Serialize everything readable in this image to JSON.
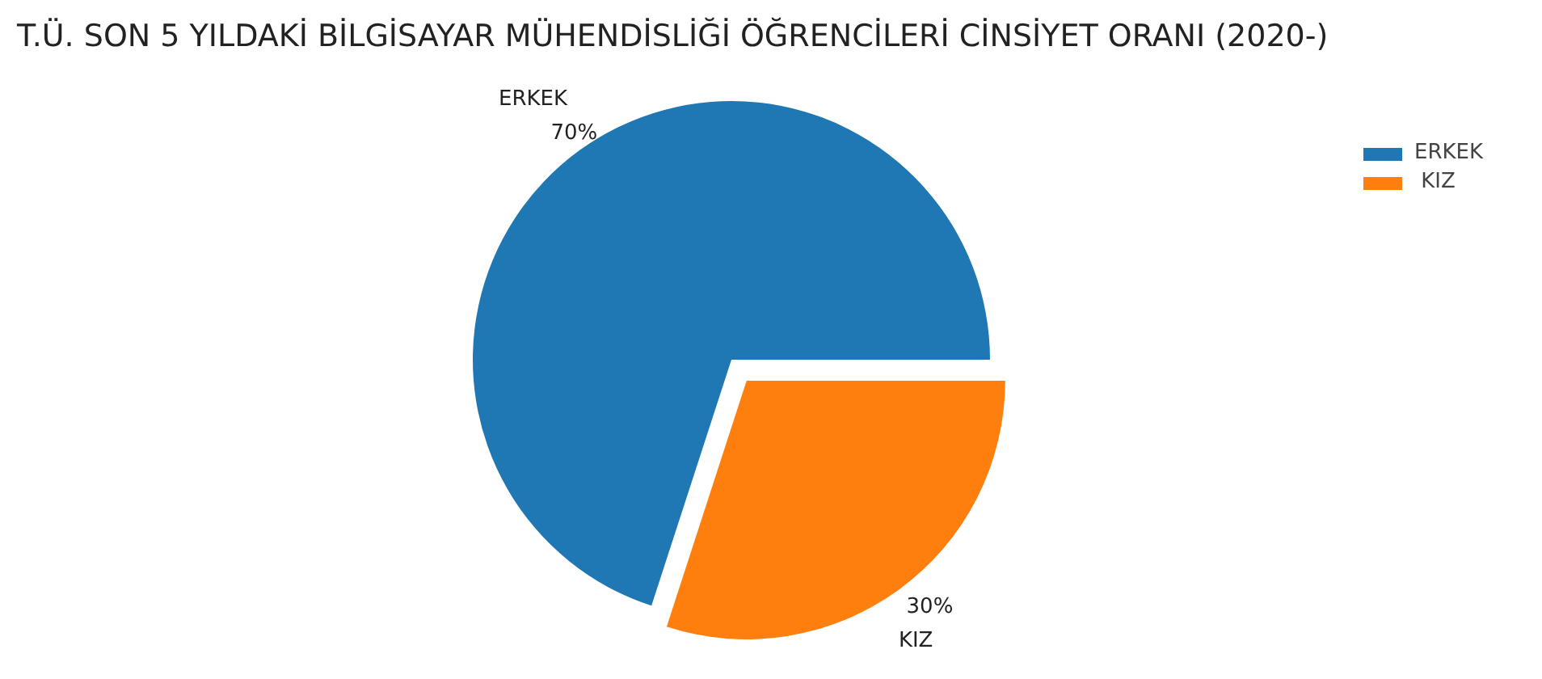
{
  "chart_data": {
    "type": "pie",
    "title": "T.Ü. SON 5 YILDAKİ BİLGİSAYAR MÜHENDİSLİĞİ ÖĞRENCİLERİ CİNSİYET ORANI (2020-)",
    "categories": [
      "ERKEK",
      " KIZ"
    ],
    "values": [
      70,
      30
    ],
    "value_labels": [
      "70%",
      "30%"
    ],
    "colors": [
      "#1f77b4",
      "#ff7f0e"
    ],
    "legend": "right"
  }
}
